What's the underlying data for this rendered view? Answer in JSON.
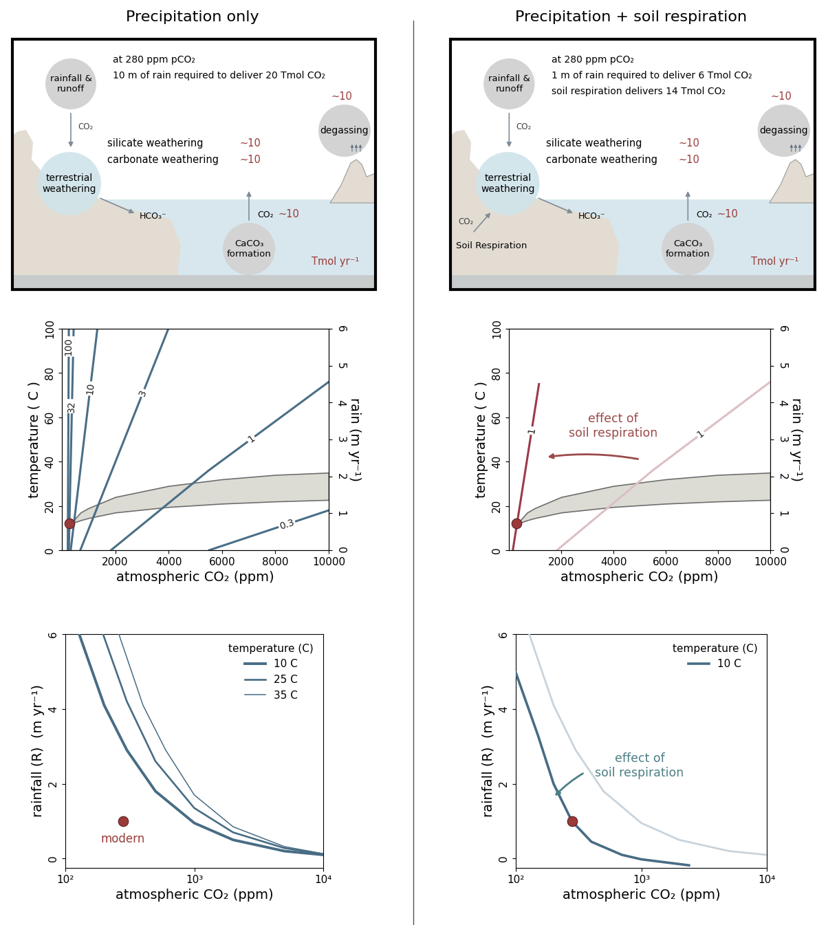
{
  "diagrams": [
    {
      "title": "Precipitation only",
      "header": [
        "at 280 ppm pCO₂",
        "10 m of rain required to deliver 20 Tmol CO₂"
      ],
      "nodes": {
        "rainfall": "rainfall &\nrunoff",
        "weathering": "terrestrial\nweathering",
        "degassing": "degassing",
        "carbonate": "CaCO₃\nformation"
      },
      "fluxes": [
        {
          "label": "silicate weathering",
          "value": "~10"
        },
        {
          "label": "carbonate weathering",
          "value": "~10"
        }
      ],
      "rain_flux": "CO₂",
      "bicarbonate": "HCO₃⁻",
      "degassing_flux": "~10",
      "ocean_flux": {
        "label": "CO₂",
        "value": "~10"
      },
      "units": "Tmol yr⁻¹"
    },
    {
      "title": "Precipitation + soil respiration",
      "header": [
        "at 280 ppm pCO₂",
        "1 m of rain required to deliver 6 Tmol CO₂",
        "soil respiration delivers 14 Tmol CO₂"
      ],
      "nodes": {
        "rainfall": "rainfall &\nrunoff",
        "weathering": "terrestrial\nweathering",
        "degassing": "degassing",
        "carbonate": "CaCO₃\nformation"
      },
      "fluxes": [
        {
          "label": "silicate weathering",
          "value": "~10"
        },
        {
          "label": "carbonate weathering",
          "value": "~10"
        }
      ],
      "rain_flux": "CO₂",
      "bicarbonate": "HCO₃⁻",
      "degassing_flux": "~10",
      "ocean_flux": {
        "label": "CO₂",
        "value": "~10"
      },
      "units": "Tmol yr⁻¹",
      "soil": {
        "label": "Soil Respiration",
        "flux": "CO₂"
      }
    }
  ],
  "chart_data": [
    {
      "type": "contour",
      "xlabel": "atmospheric CO₂ (ppm)",
      "ylabel": "temperature ( C )",
      "y2label": "rain (m yr⁻¹)",
      "xlim": [
        0,
        10000
      ],
      "xticks": [
        2000,
        4000,
        6000,
        8000,
        10000
      ],
      "ylim": [
        0,
        100
      ],
      "yticks": [
        0,
        20,
        40,
        60,
        80,
        100
      ],
      "y2lim": [
        0,
        6
      ],
      "y2ticks": [
        0,
        1,
        2,
        3,
        4,
        5,
        6
      ],
      "series": [
        {
          "name": "100",
          "color": "#4a6e86",
          "x": [
            220,
            260
          ],
          "values": [
            0,
            100
          ]
        },
        {
          "name": "32",
          "color": "#4a6e86",
          "x": [
            260,
            440
          ],
          "values": [
            0,
            100
          ]
        },
        {
          "name": "10",
          "color": "#4a6e86",
          "x": [
            330,
            1330
          ],
          "values": [
            0,
            100
          ]
        },
        {
          "name": "3",
          "color": "#4a6e86",
          "x": [
            690,
            3990
          ],
          "values": [
            0,
            100
          ]
        },
        {
          "name": "1",
          "color": "#4a6e86",
          "x": [
            1840,
            5500,
            10000
          ],
          "values": [
            0,
            36,
            76
          ]
        },
        {
          "name": "0.3",
          "color": "#4a6e86",
          "x": [
            5520,
            10000
          ],
          "values": [
            0,
            18
          ]
        }
      ],
      "band": {
        "x": [
          330,
          700,
          1000,
          2000,
          4000,
          6000,
          8000,
          10000
        ],
        "lower": [
          12,
          13.5,
          14.5,
          17,
          19.5,
          21,
          22,
          22.7
        ],
        "upper": [
          12,
          17,
          19,
          24,
          29,
          32,
          34,
          35
        ],
        "color": "#dcdcd4"
      },
      "points": [
        {
          "x": 280,
          "y": 12,
          "color": "#9b3a3a"
        }
      ]
    },
    {
      "type": "contour",
      "xlabel": "atmospheric CO₂ (ppm)",
      "ylabel": "temperature ( C )",
      "y2label": "rain (m yr⁻¹)",
      "xlim": [
        0,
        10000
      ],
      "xticks": [
        2000,
        4000,
        6000,
        8000,
        10000
      ],
      "ylim": [
        0,
        100
      ],
      "yticks": [
        0,
        20,
        40,
        60,
        80,
        100
      ],
      "y2lim": [
        0,
        6
      ],
      "y2ticks": [
        0,
        1,
        2,
        3,
        4,
        5,
        6
      ],
      "series": [
        {
          "name": "1",
          "color": "#9b3a4a",
          "x": [
            150,
            1150
          ],
          "values": [
            0,
            75
          ]
        },
        {
          "name": "1",
          "color": "#dcbfc3",
          "x": [
            1840,
            5500,
            10000
          ],
          "values": [
            0,
            36,
            76
          ]
        }
      ],
      "band": {
        "x": [
          330,
          700,
          1000,
          2000,
          4000,
          6000,
          8000,
          10000
        ],
        "lower": [
          12,
          13.5,
          14.5,
          17,
          19.5,
          21,
          22,
          22.7
        ],
        "upper": [
          12,
          17,
          19,
          24,
          29,
          32,
          34,
          35
        ],
        "color": "#dcdcd4"
      },
      "points": [
        {
          "x": 280,
          "y": 12,
          "color": "#9b3a3a"
        }
      ],
      "annotations": [
        {
          "text": "effect of\nsoil respiration",
          "color": "#9b4a4a"
        }
      ]
    },
    {
      "type": "line",
      "log": "x",
      "xlabel": "atmospheric CO₂ (ppm)",
      "ylabel": "rainfall (R)  (m yr⁻¹)",
      "xlim": [
        100,
        10000
      ],
      "xticks": [
        {
          "value": 100,
          "label": "10²"
        },
        {
          "value": 1000,
          "label": "10³"
        },
        {
          "value": 10000,
          "label": "10⁴"
        }
      ],
      "ylim": [
        -0.25,
        6
      ],
      "yticks": [
        0,
        2,
        4,
        6
      ],
      "legend": "upper right",
      "legend_title": "temperature (C)",
      "series": [
        {
          "name": "10 C",
          "color": "#486c84",
          "x": [
            128,
            200,
            300,
            500,
            1000,
            2000,
            5000,
            10000
          ],
          "values": [
            6,
            4.1,
            2.9,
            1.8,
            0.95,
            0.5,
            0.2,
            0.1
          ]
        },
        {
          "name": "25 C",
          "color": "#486c84",
          "x": [
            196,
            300,
            500,
            1000,
            2000,
            5000,
            10000
          ],
          "values": [
            6,
            4.2,
            2.6,
            1.35,
            0.7,
            0.28,
            0.12
          ]
        },
        {
          "name": "35 C",
          "color": "#486c84",
          "x": [
            260,
            400,
            600,
            1000,
            2000,
            5000,
            10000
          ],
          "values": [
            6,
            4.1,
            2.9,
            1.7,
            0.85,
            0.32,
            0.13
          ]
        }
      ],
      "points": [
        {
          "x": 280,
          "y": 1,
          "label": "modern",
          "color": "#9b3a3a"
        }
      ]
    },
    {
      "type": "line",
      "log": "x",
      "xlabel": "atmospheric CO₂ (ppm)",
      "ylabel": "rainfall (R)  (m yr⁻¹)",
      "xlim": [
        100,
        10000
      ],
      "xticks": [
        {
          "value": 100,
          "label": "10²"
        },
        {
          "value": 1000,
          "label": "10³"
        },
        {
          "value": 10000,
          "label": "10⁴"
        }
      ],
      "ylim": [
        -0.25,
        6
      ],
      "yticks": [
        0,
        2,
        4,
        6
      ],
      "legend": "upper right",
      "legend_title": "temperature (C)",
      "series": [
        {
          "color": "#c9d3dc",
          "x": [
            128,
            200,
            300,
            500,
            1000,
            2000,
            5000,
            10000
          ],
          "values": [
            6,
            4.1,
            2.9,
            1.8,
            0.95,
            0.5,
            0.2,
            0.1
          ]
        },
        {
          "name": "10 C",
          "color": "#486c84",
          "x": [
            100,
            150,
            200,
            280,
            400,
            700,
            1000,
            2400
          ],
          "values": [
            4.97,
            3.3,
            2.0,
            1.0,
            0.45,
            0.1,
            -0.02,
            -0.18
          ]
        }
      ],
      "points": [
        {
          "x": 280,
          "y": 1,
          "color": "#9b3a3a"
        }
      ],
      "annotations": [
        {
          "text": "effect of\nsoil respiration",
          "color": "#4d7f86"
        }
      ]
    }
  ]
}
